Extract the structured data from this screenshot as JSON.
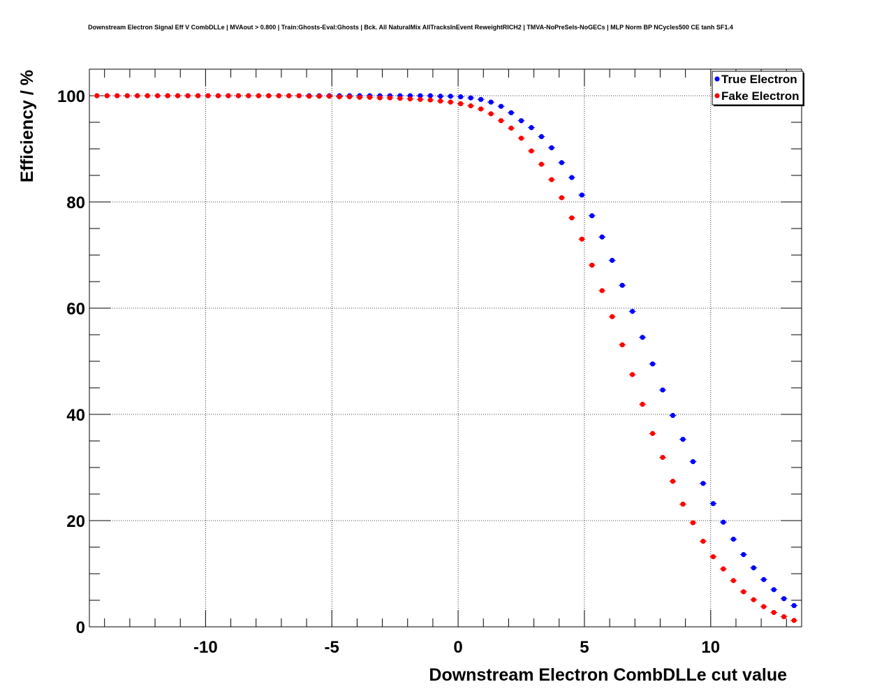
{
  "chart_data": {
    "type": "scatter",
    "title": "Downstream Electron Signal Eff V CombDLLe | MVAout > 0.800 | Train:Ghosts-Eval:Ghosts | Bck. All NaturalMix AllTracksInEvent ReweightRICH2 | TMVA-NoPreSels-NoGECs | MLP Norm BP NCycles500 CE tanh SF1.4",
    "xlabel": "Downstream Electron CombDLLe cut value",
    "ylabel": "Efficiency / %",
    "xlim": [
      -14.6,
      13.6
    ],
    "ylim": [
      0,
      105
    ],
    "x_ticks": [
      -10,
      -5,
      0,
      5,
      10
    ],
    "x_tick_labels": [
      "-10",
      "-5",
      "0",
      "5",
      "10"
    ],
    "y_ticks": [
      0,
      20,
      40,
      60,
      80,
      100
    ],
    "y_tick_labels": [
      "0",
      "20",
      "40",
      "60",
      "80",
      "100"
    ],
    "grid": true,
    "legend_position": "top-right",
    "series": [
      {
        "name": "True Electron",
        "color": "#0000ff",
        "x": [
          -14.3,
          -13.9,
          -13.5,
          -13.1,
          -12.7,
          -12.3,
          -11.9,
          -11.5,
          -11.1,
          -10.7,
          -10.3,
          -9.9,
          -9.5,
          -9.1,
          -8.7,
          -8.3,
          -7.9,
          -7.5,
          -7.1,
          -6.7,
          -6.3,
          -5.9,
          -5.5,
          -5.1,
          -4.7,
          -4.3,
          -3.9,
          -3.5,
          -3.1,
          -2.7,
          -2.3,
          -1.9,
          -1.5,
          -1.1,
          -0.7,
          -0.3,
          0.1,
          0.5,
          0.9,
          1.3,
          1.7,
          2.1,
          2.5,
          2.9,
          3.3,
          3.7,
          4.1,
          4.5,
          4.9,
          5.3,
          5.7,
          6.1,
          6.5,
          6.9,
          7.3,
          7.7,
          8.1,
          8.5,
          8.9,
          9.3,
          9.7,
          10.1,
          10.5,
          10.9,
          11.3,
          11.7,
          12.1,
          12.5,
          12.9,
          13.3
        ],
        "y": [
          100,
          100,
          100,
          100,
          100,
          100,
          100,
          100,
          100,
          100,
          100,
          100,
          100,
          100,
          100,
          100,
          100,
          100,
          100,
          100,
          100,
          100,
          100,
          100,
          100,
          100,
          100,
          100,
          100,
          100,
          100,
          100,
          100,
          100,
          99.9,
          99.9,
          99.8,
          99.6,
          99.3,
          98.8,
          98,
          96.8,
          95.3,
          94,
          92.3,
          90.2,
          87.4,
          84.6,
          81.3,
          77.4,
          73.4,
          69,
          64.3,
          59.4,
          54.5,
          49.5,
          44.6,
          39.8,
          35.3,
          31.1,
          27,
          23.2,
          19.7,
          16.5,
          13.6,
          11.1,
          8.9,
          7,
          5.3,
          4
        ]
      },
      {
        "name": "Fake Electron",
        "color": "#ff0000",
        "x": [
          -14.3,
          -13.9,
          -13.5,
          -13.1,
          -12.7,
          -12.3,
          -11.9,
          -11.5,
          -11.1,
          -10.7,
          -10.3,
          -9.9,
          -9.5,
          -9.1,
          -8.7,
          -8.3,
          -7.9,
          -7.5,
          -7.1,
          -6.7,
          -6.3,
          -5.9,
          -5.5,
          -5.1,
          -4.7,
          -4.3,
          -3.9,
          -3.5,
          -3.1,
          -2.7,
          -2.3,
          -1.9,
          -1.5,
          -1.1,
          -0.7,
          -0.3,
          0.1,
          0.5,
          0.9,
          1.3,
          1.7,
          2.1,
          2.5,
          2.9,
          3.3,
          3.7,
          4.1,
          4.5,
          4.9,
          5.3,
          5.7,
          6.1,
          6.5,
          6.9,
          7.3,
          7.7,
          8.1,
          8.5,
          8.9,
          9.3,
          9.7,
          10.1,
          10.5,
          10.9,
          11.3,
          11.7,
          12.1,
          12.5,
          12.9,
          13.3
        ],
        "y": [
          100,
          100,
          100,
          100,
          100,
          100,
          100,
          100,
          100,
          100,
          100,
          100,
          100,
          100,
          100,
          100,
          100,
          100,
          100,
          100,
          100,
          99.9,
          99.9,
          99.9,
          99.8,
          99.8,
          99.7,
          99.7,
          99.6,
          99.6,
          99.5,
          99.4,
          99.3,
          99.2,
          99,
          98.8,
          98.5,
          98.1,
          97.5,
          96.6,
          95.3,
          93.9,
          92,
          89.6,
          87.1,
          84.2,
          80.8,
          77,
          73,
          68.1,
          63.3,
          58.4,
          53.1,
          47.5,
          41.9,
          36.4,
          31.9,
          27.4,
          23.1,
          19.6,
          16.1,
          13.2,
          10.9,
          8.7,
          6.6,
          5.1,
          3.8,
          2.7,
          1.9,
          1.2
        ]
      }
    ]
  }
}
